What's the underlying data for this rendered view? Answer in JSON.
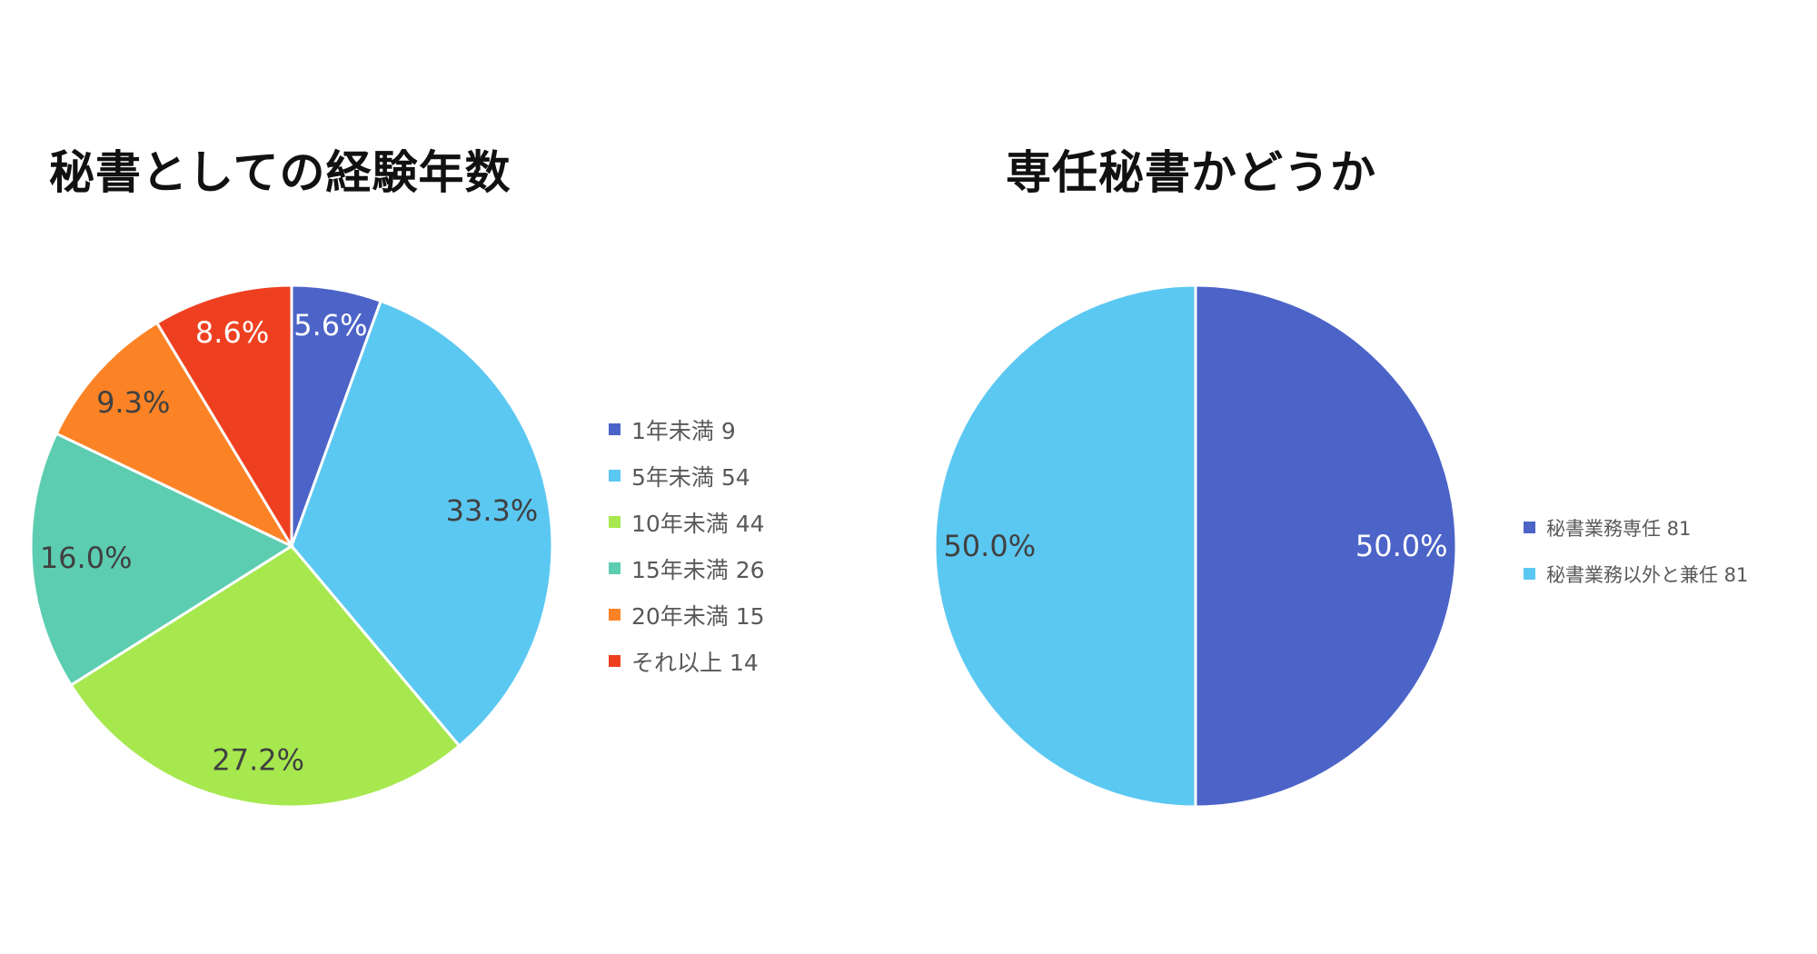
{
  "chart_data": [
    {
      "type": "pie",
      "title": "秘書としての経験年数",
      "categories": [
        "1年未満",
        "5年未満",
        "10年未満",
        "15年未満",
        "20年未満",
        "それ以上"
      ],
      "values": [
        9,
        54,
        44,
        26,
        15,
        14
      ],
      "data_labels": [
        "5.6%",
        "33.3%",
        "27.2%",
        "16.0%",
        "9.3%",
        "8.6%"
      ],
      "legend_labels": [
        "1年未満 9",
        "5年未満 54",
        "10年未満 44",
        "15年未満 26",
        "20年未満 15",
        "それ以上 14"
      ],
      "colors": [
        "#4C63C8",
        "#5BC8F2",
        "#A6E84E",
        "#5CCDB0",
        "#FC8325",
        "#EE4020"
      ],
      "label_colors": [
        "#ffffff",
        "#404040",
        "#404040",
        "#404040",
        "#404040",
        "#ffffff"
      ],
      "legend_position": "right"
    },
    {
      "type": "pie",
      "title": "専任秘書かどうか",
      "categories": [
        "秘書業務専任",
        "秘書業務以外と兼任"
      ],
      "values": [
        81,
        81
      ],
      "data_labels": [
        "50.0%",
        "50.0%"
      ],
      "legend_labels": [
        "秘書業務専任 81",
        "秘書業務以外と兼任 81"
      ],
      "colors": [
        "#4C63C8",
        "#5BC8F2"
      ],
      "label_colors": [
        "#ffffff",
        "#404040"
      ],
      "legend_position": "right"
    }
  ]
}
